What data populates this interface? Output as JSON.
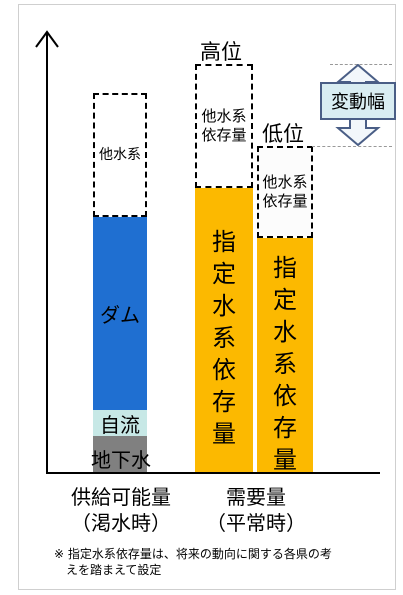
{
  "supply_bar": {
    "other_label": "他水系",
    "dam_label": "ダム",
    "natural_flow_label": "自流",
    "groundwater_label": "地下水"
  },
  "demand_high_bar": {
    "level_label": "高位",
    "other_label": "他水系\n依存量",
    "designated_label": "指定水系依存量"
  },
  "demand_low_bar": {
    "level_label": "低位",
    "other_label": "他水系\n依存量",
    "designated_label": "指定水系依存量"
  },
  "range_label": "変動幅",
  "x_labels": {
    "supply": "供給可能量\n（渇水時）",
    "demand": "需要量\n（平常時）"
  },
  "footnote": "※ 指定水系依存量は、将来の動向に関する各県の考\n　えを踏まえて設定",
  "colors": {
    "dam": "#1f6fd1",
    "natural_flow": "#c7e8e6",
    "groundwater": "#808080",
    "designated": "#fcb900",
    "range_box_fill": "#d9edf2",
    "range_box_border": "#4a5e86",
    "arrow": "#f2f7fb"
  }
}
